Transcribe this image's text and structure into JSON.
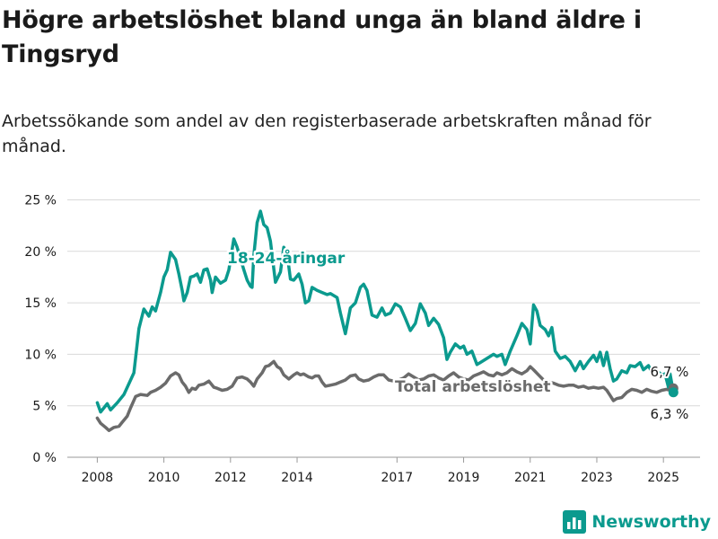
{
  "title": "Högre arbetslöshet bland unga än bland äldre i Tingsryd",
  "subtitle": "Arbetssökande som andel av den registerbaserade arbetskraften månad för månad.",
  "brand": {
    "name": "Newsworthy",
    "icon": "bar-chart-logo-icon"
  },
  "colors": {
    "youth": "#0b9a8e",
    "total": "#6b6b6b",
    "grid": "#d9d9d9",
    "text": "#1a1a1a"
  },
  "chart_data": {
    "type": "line",
    "x_ticks": [
      "2008",
      "2010",
      "2012",
      "2014",
      "2017",
      "2019",
      "2021",
      "2023",
      "2025"
    ],
    "x_tick_positions": [
      2008,
      2010,
      2012,
      2014,
      2017,
      2019,
      2021,
      2023,
      2025
    ],
    "xlim": [
      2007.1,
      2026.1
    ],
    "y_ticks": [
      "0 %",
      "5 %",
      "10 %",
      "15 %",
      "20 %",
      "25 %"
    ],
    "y_tick_values": [
      0,
      5,
      10,
      15,
      20,
      25
    ],
    "ylim": [
      0,
      26
    ],
    "grid": true,
    "series": [
      {
        "name": "18-24-åringar",
        "key": "youth",
        "end_label": "6,3 %",
        "points": [
          [
            2008.0,
            5.3
          ],
          [
            2008.1,
            4.4
          ],
          [
            2008.3,
            5.2
          ],
          [
            2008.4,
            4.6
          ],
          [
            2008.6,
            5.3
          ],
          [
            2008.8,
            6.1
          ],
          [
            2008.9,
            6.8
          ],
          [
            2009.1,
            8.2
          ],
          [
            2009.25,
            12.5
          ],
          [
            2009.4,
            14.4
          ],
          [
            2009.55,
            13.7
          ],
          [
            2009.65,
            14.6
          ],
          [
            2009.75,
            14.2
          ],
          [
            2009.9,
            16.0
          ],
          [
            2010.0,
            17.5
          ],
          [
            2010.1,
            18.2
          ],
          [
            2010.2,
            19.9
          ],
          [
            2010.35,
            19.2
          ],
          [
            2010.45,
            17.8
          ],
          [
            2010.55,
            16.2
          ],
          [
            2010.6,
            15.2
          ],
          [
            2010.7,
            16.0
          ],
          [
            2010.8,
            17.5
          ],
          [
            2010.9,
            17.6
          ],
          [
            2011.0,
            17.8
          ],
          [
            2011.1,
            17.0
          ],
          [
            2011.2,
            18.2
          ],
          [
            2011.3,
            18.3
          ],
          [
            2011.4,
            17.2
          ],
          [
            2011.45,
            16.0
          ],
          [
            2011.55,
            17.5
          ],
          [
            2011.7,
            16.9
          ],
          [
            2011.85,
            17.2
          ],
          [
            2011.95,
            18.2
          ],
          [
            2012.1,
            21.2
          ],
          [
            2012.2,
            20.4
          ],
          [
            2012.3,
            19.3
          ],
          [
            2012.4,
            18.2
          ],
          [
            2012.5,
            17.2
          ],
          [
            2012.6,
            16.6
          ],
          [
            2012.65,
            16.5
          ],
          [
            2012.7,
            19.6
          ],
          [
            2012.8,
            22.8
          ],
          [
            2012.9,
            23.9
          ],
          [
            2013.0,
            22.6
          ],
          [
            2013.1,
            22.3
          ],
          [
            2013.2,
            21.0
          ],
          [
            2013.35,
            17.0
          ],
          [
            2013.5,
            18.0
          ],
          [
            2013.6,
            20.4
          ],
          [
            2013.7,
            19.8
          ],
          [
            2013.8,
            17.3
          ],
          [
            2013.9,
            17.2
          ],
          [
            2014.05,
            17.8
          ],
          [
            2014.15,
            16.8
          ],
          [
            2014.25,
            15.0
          ],
          [
            2014.35,
            15.2
          ],
          [
            2014.45,
            16.5
          ],
          [
            2014.6,
            16.2
          ],
          [
            2014.75,
            16.0
          ],
          [
            2014.9,
            15.8
          ],
          [
            2015.0,
            15.9
          ],
          [
            2015.2,
            15.5
          ],
          [
            2015.3,
            14.0
          ],
          [
            2015.45,
            12.0
          ],
          [
            2015.6,
            14.5
          ],
          [
            2015.75,
            15.0
          ],
          [
            2015.9,
            16.5
          ],
          [
            2016.0,
            16.8
          ],
          [
            2016.1,
            16.2
          ],
          [
            2016.25,
            13.8
          ],
          [
            2016.4,
            13.6
          ],
          [
            2016.55,
            14.5
          ],
          [
            2016.65,
            13.8
          ],
          [
            2016.8,
            14.0
          ],
          [
            2016.95,
            14.9
          ],
          [
            2017.1,
            14.6
          ],
          [
            2017.25,
            13.5
          ],
          [
            2017.4,
            12.3
          ],
          [
            2017.55,
            13.0
          ],
          [
            2017.7,
            14.9
          ],
          [
            2017.85,
            14.0
          ],
          [
            2017.95,
            12.8
          ],
          [
            2018.1,
            13.5
          ],
          [
            2018.25,
            12.9
          ],
          [
            2018.4,
            11.6
          ],
          [
            2018.5,
            9.5
          ],
          [
            2018.6,
            10.2
          ],
          [
            2018.75,
            11.0
          ],
          [
            2018.9,
            10.6
          ],
          [
            2019.0,
            10.8
          ],
          [
            2019.1,
            10.0
          ],
          [
            2019.25,
            10.3
          ],
          [
            2019.4,
            9.0
          ],
          [
            2019.5,
            9.2
          ],
          [
            2019.7,
            9.6
          ],
          [
            2019.9,
            10.0
          ],
          [
            2020.0,
            9.8
          ],
          [
            2020.15,
            10.0
          ],
          [
            2020.25,
            9.0
          ],
          [
            2020.4,
            10.3
          ],
          [
            2020.6,
            11.8
          ],
          [
            2020.75,
            13.0
          ],
          [
            2020.9,
            12.4
          ],
          [
            2021.0,
            11.0
          ],
          [
            2021.1,
            14.8
          ],
          [
            2021.2,
            14.2
          ],
          [
            2021.3,
            12.8
          ],
          [
            2021.45,
            12.4
          ],
          [
            2021.55,
            11.8
          ],
          [
            2021.65,
            12.6
          ],
          [
            2021.75,
            10.3
          ],
          [
            2021.9,
            9.6
          ],
          [
            2022.05,
            9.8
          ],
          [
            2022.2,
            9.3
          ],
          [
            2022.35,
            8.4
          ],
          [
            2022.5,
            9.3
          ],
          [
            2022.6,
            8.6
          ],
          [
            2022.75,
            9.3
          ],
          [
            2022.9,
            9.9
          ],
          [
            2023.0,
            9.3
          ],
          [
            2023.1,
            10.2
          ],
          [
            2023.2,
            8.9
          ],
          [
            2023.3,
            10.2
          ],
          [
            2023.4,
            8.6
          ],
          [
            2023.5,
            7.4
          ],
          [
            2023.6,
            7.6
          ],
          [
            2023.75,
            8.4
          ],
          [
            2023.9,
            8.2
          ],
          [
            2024.0,
            8.9
          ],
          [
            2024.15,
            8.8
          ],
          [
            2024.3,
            9.2
          ],
          [
            2024.4,
            8.5
          ],
          [
            2024.55,
            8.9
          ],
          [
            2024.65,
            8.3
          ],
          [
            2024.8,
            8.4
          ],
          [
            2024.95,
            8.0
          ],
          [
            2025.05,
            8.1
          ],
          [
            2025.15,
            6.8
          ],
          [
            2025.2,
            8.1
          ],
          [
            2025.3,
            6.3
          ]
        ]
      },
      {
        "name": "Total arbetslöshet",
        "key": "total",
        "end_label": "6,7 %",
        "points": [
          [
            2008.0,
            3.8
          ],
          [
            2008.1,
            3.3
          ],
          [
            2008.25,
            2.9
          ],
          [
            2008.35,
            2.6
          ],
          [
            2008.5,
            2.9
          ],
          [
            2008.65,
            3.0
          ],
          [
            2008.75,
            3.4
          ],
          [
            2008.9,
            4.0
          ],
          [
            2009.0,
            4.8
          ],
          [
            2009.15,
            5.9
          ],
          [
            2009.3,
            6.1
          ],
          [
            2009.5,
            6.0
          ],
          [
            2009.6,
            6.3
          ],
          [
            2009.75,
            6.5
          ],
          [
            2009.9,
            6.8
          ],
          [
            2010.05,
            7.2
          ],
          [
            2010.2,
            7.9
          ],
          [
            2010.35,
            8.2
          ],
          [
            2010.45,
            8.0
          ],
          [
            2010.55,
            7.3
          ],
          [
            2010.65,
            6.9
          ],
          [
            2010.75,
            6.3
          ],
          [
            2010.85,
            6.7
          ],
          [
            2010.95,
            6.6
          ],
          [
            2011.05,
            7.0
          ],
          [
            2011.2,
            7.1
          ],
          [
            2011.35,
            7.4
          ],
          [
            2011.5,
            6.8
          ],
          [
            2011.6,
            6.7
          ],
          [
            2011.75,
            6.5
          ],
          [
            2011.9,
            6.6
          ],
          [
            2012.05,
            6.9
          ],
          [
            2012.2,
            7.7
          ],
          [
            2012.35,
            7.8
          ],
          [
            2012.5,
            7.6
          ],
          [
            2012.6,
            7.3
          ],
          [
            2012.7,
            6.9
          ],
          [
            2012.8,
            7.6
          ],
          [
            2012.95,
            8.2
          ],
          [
            2013.05,
            8.8
          ],
          [
            2013.15,
            8.9
          ],
          [
            2013.3,
            9.3
          ],
          [
            2013.4,
            8.8
          ],
          [
            2013.5,
            8.6
          ],
          [
            2013.6,
            8.0
          ],
          [
            2013.75,
            7.6
          ],
          [
            2013.9,
            8.0
          ],
          [
            2014.0,
            8.2
          ],
          [
            2014.1,
            8.0
          ],
          [
            2014.2,
            8.1
          ],
          [
            2014.35,
            7.8
          ],
          [
            2014.45,
            7.7
          ],
          [
            2014.55,
            7.9
          ],
          [
            2014.65,
            7.9
          ],
          [
            2014.75,
            7.3
          ],
          [
            2014.85,
            6.9
          ],
          [
            2015.0,
            7.0
          ],
          [
            2015.15,
            7.1
          ],
          [
            2015.3,
            7.3
          ],
          [
            2015.45,
            7.5
          ],
          [
            2015.6,
            7.9
          ],
          [
            2015.75,
            8.0
          ],
          [
            2015.85,
            7.6
          ],
          [
            2016.0,
            7.4
          ],
          [
            2016.15,
            7.5
          ],
          [
            2016.3,
            7.8
          ],
          [
            2016.45,
            8.0
          ],
          [
            2016.6,
            8.0
          ],
          [
            2016.75,
            7.5
          ],
          [
            2016.9,
            7.4
          ],
          [
            2017.05,
            7.5
          ],
          [
            2017.2,
            7.7
          ],
          [
            2017.35,
            8.1
          ],
          [
            2017.5,
            7.8
          ],
          [
            2017.65,
            7.5
          ],
          [
            2017.8,
            7.6
          ],
          [
            2017.95,
            7.9
          ],
          [
            2018.1,
            8.0
          ],
          [
            2018.25,
            7.7
          ],
          [
            2018.4,
            7.5
          ],
          [
            2018.55,
            7.9
          ],
          [
            2018.7,
            8.2
          ],
          [
            2018.85,
            7.8
          ],
          [
            2019.0,
            7.6
          ],
          [
            2019.15,
            7.5
          ],
          [
            2019.3,
            7.9
          ],
          [
            2019.45,
            8.1
          ],
          [
            2019.6,
            8.3
          ],
          [
            2019.75,
            8.0
          ],
          [
            2019.9,
            7.9
          ],
          [
            2020.0,
            8.2
          ],
          [
            2020.15,
            8.0
          ],
          [
            2020.3,
            8.2
          ],
          [
            2020.45,
            8.6
          ],
          [
            2020.6,
            8.3
          ],
          [
            2020.75,
            8.1
          ],
          [
            2020.9,
            8.4
          ],
          [
            2021.0,
            8.8
          ],
          [
            2021.1,
            8.5
          ],
          [
            2021.25,
            8.0
          ],
          [
            2021.4,
            7.5
          ],
          [
            2021.55,
            7.3
          ],
          [
            2021.7,
            7.2
          ],
          [
            2021.85,
            7.0
          ],
          [
            2022.0,
            6.9
          ],
          [
            2022.15,
            7.0
          ],
          [
            2022.3,
            7.0
          ],
          [
            2022.45,
            6.8
          ],
          [
            2022.6,
            6.9
          ],
          [
            2022.75,
            6.7
          ],
          [
            2022.9,
            6.8
          ],
          [
            2023.05,
            6.7
          ],
          [
            2023.2,
            6.8
          ],
          [
            2023.3,
            6.5
          ],
          [
            2023.4,
            6.0
          ],
          [
            2023.5,
            5.5
          ],
          [
            2023.6,
            5.7
          ],
          [
            2023.75,
            5.8
          ],
          [
            2023.9,
            6.3
          ],
          [
            2024.05,
            6.6
          ],
          [
            2024.2,
            6.5
          ],
          [
            2024.35,
            6.3
          ],
          [
            2024.5,
            6.6
          ],
          [
            2024.65,
            6.4
          ],
          [
            2024.8,
            6.3
          ],
          [
            2024.95,
            6.5
          ],
          [
            2025.1,
            6.6
          ],
          [
            2025.2,
            6.5
          ],
          [
            2025.3,
            6.7
          ]
        ]
      }
    ]
  }
}
